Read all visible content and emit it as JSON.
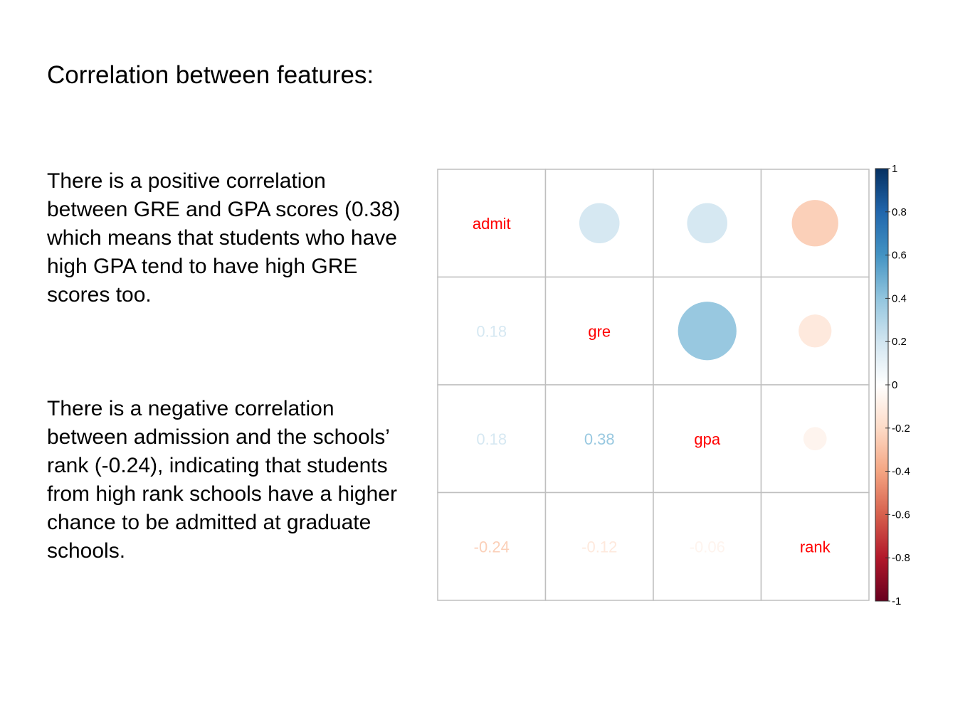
{
  "slide": {
    "title": "Correlation between features:",
    "paragraph_1": "There is a positive correlation between GRE and GPA scores (0.38) which means that students who have high GPA tend to have high GRE scores too.",
    "paragraph_2": "There is a negative correlation between admission and the schools’ rank (-0.24), indicating that students from high rank schools have a higher chance to be admitted at graduate schools."
  },
  "chart_data": {
    "type": "heatmap",
    "variables": [
      "admit",
      "gre",
      "gpa",
      "rank"
    ],
    "matrix": [
      [
        1.0,
        0.18,
        0.18,
        -0.24
      ],
      [
        0.18,
        1.0,
        0.38,
        -0.12
      ],
      [
        0.18,
        0.38,
        1.0,
        -0.06
      ],
      [
        -0.24,
        -0.12,
        -0.06,
        1.0
      ]
    ],
    "upper_triangle": "circle",
    "lower_triangle": "number",
    "diagonal": "variable-name",
    "colorbar": {
      "ticks": [
        "1",
        "0.8",
        "0.6",
        "0.4",
        "0.2",
        "0",
        "-0.2",
        "-0.4",
        "-0.6",
        "-0.8",
        "-1"
      ],
      "range": [
        -1,
        1
      ],
      "colors": [
        "#67001F",
        "#B2182B",
        "#D6604D",
        "#F4A582",
        "#FDDBC7",
        "#FFFFFF",
        "#D1E5F0",
        "#92C5DE",
        "#4393C3",
        "#2166AC",
        "#053061"
      ]
    },
    "label_color": "#FF0000",
    "grid_color": "#BFBFBF"
  }
}
